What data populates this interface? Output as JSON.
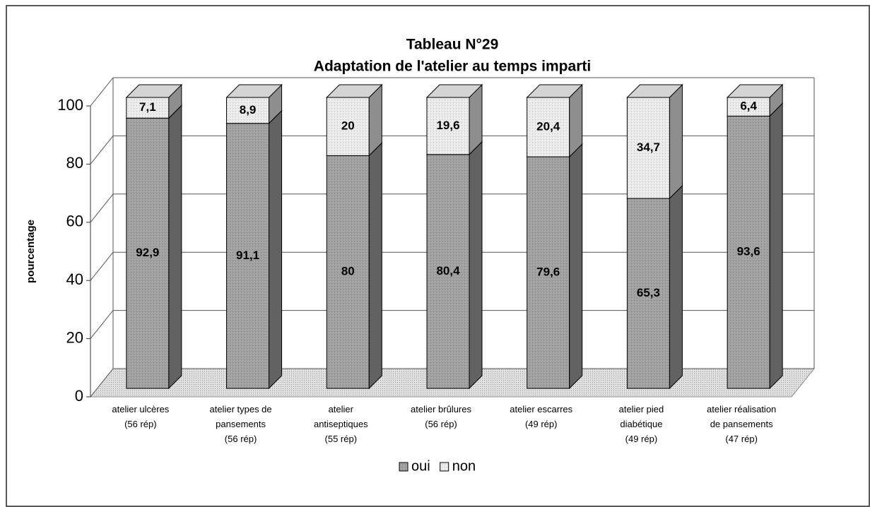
{
  "chart_data": {
    "type": "bar3d_stacked",
    "title": "Tableau N°29",
    "subtitle": "Adaptation de l'atelier au temps imparti",
    "ylabel": "pourcentage",
    "categories": [
      [
        "atelier ulcères",
        "(56 rép)"
      ],
      [
        "atelier types de",
        "pansements",
        "(56 rép)"
      ],
      [
        "atelier",
        "antiseptiques",
        "(55 rép)"
      ],
      [
        "atelier brûlures",
        "(56 rép)"
      ],
      [
        "atelier escarres",
        "(49 rép)"
      ],
      [
        "atelier pied",
        "diabétique",
        "(49 rép)"
      ],
      [
        "atelier réalisation",
        "de pansements",
        "(47 rép)"
      ]
    ],
    "series": [
      {
        "name": "oui",
        "color": "#a3a3a3",
        "values": [
          92.9,
          91.1,
          80,
          80.4,
          79.6,
          65.3,
          93.6
        ],
        "value_labels": [
          "92,9",
          "91,1",
          "80",
          "80,4",
          "79,6",
          "65,3",
          "93,6"
        ]
      },
      {
        "name": "non",
        "color": "#ececec",
        "values": [
          7.1,
          8.9,
          20,
          19.6,
          20.4,
          34.7,
          6.4
        ],
        "value_labels": [
          "7,1",
          "8,9",
          "20",
          "19,6",
          "20,4",
          "34,7",
          "6,4"
        ]
      }
    ],
    "ylim": [
      0,
      100
    ],
    "yticks": [
      0,
      20,
      40,
      60,
      80,
      100
    ],
    "grid": true,
    "legend": "bottom"
  }
}
